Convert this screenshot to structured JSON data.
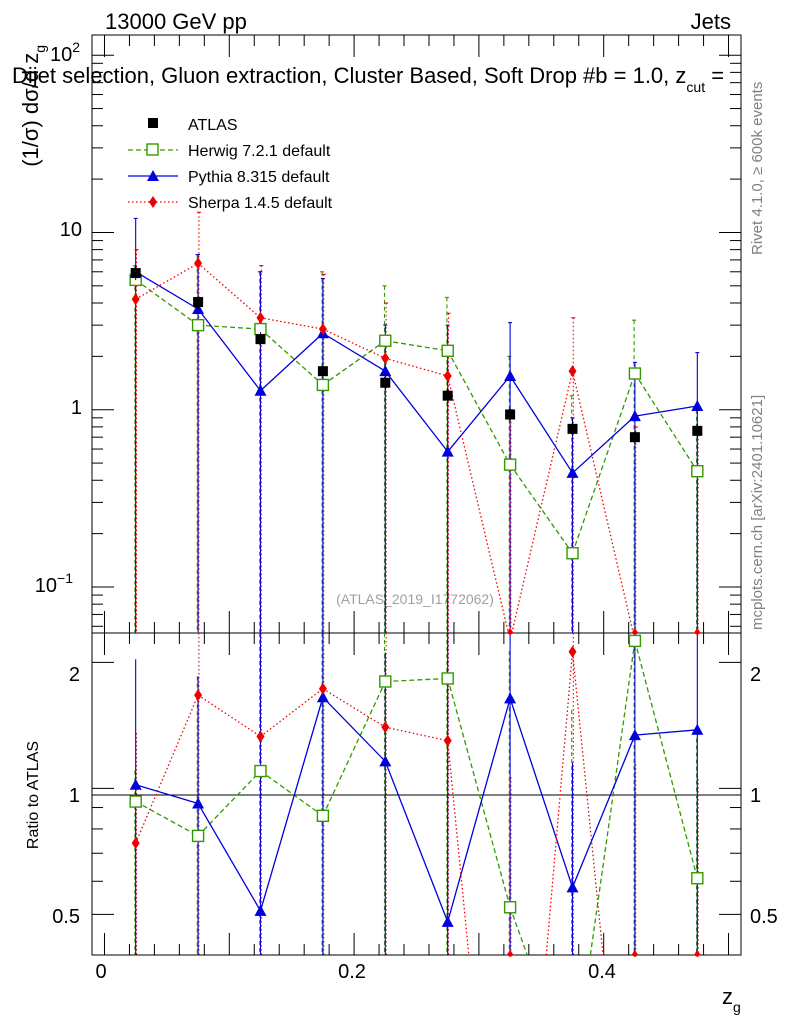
{
  "header": {
    "energy": "13000 GeV pp",
    "process": "Jets",
    "selection": "Dijet selection, Gluon extraction, Cluster Based, Soft Drop #b = 1.0, z",
    "cut_sub": "cut",
    "cut_tail": " =",
    "analysis_id": "(ATLAS_2019_I1772062)",
    "side_rivet": "Rivet 4.1.0, ≥ 600k events",
    "side_mcplots": "mcplots.cern.ch [arXiv:2401.10621]"
  },
  "axes": {
    "main_ylabel_main": "(1/σ) dσ/d z",
    "main_ylabel_sub": "g",
    "ratio_ylabel": "Ratio to ATLAS",
    "xlabel_main": "z",
    "xlabel_sub": "g",
    "main_tick_1e2_base": "10",
    "main_tick_1e2_exp": "2",
    "main_tick_10": "10",
    "main_tick_1": "1",
    "main_tick_1em1_base": "10",
    "main_tick_1em1_exp": "−1",
    "ratio_tick_2": "2",
    "ratio_tick_1": "1",
    "ratio_tick_05": "0.5",
    "x_tick_0": "0",
    "x_tick_02": "0.2",
    "x_tick_04": "0.4"
  },
  "legend": {
    "atlas": "ATLAS",
    "herwig": "Herwig 7.2.1 default",
    "pythia": "Pythia 8.315 default",
    "sherpa": "Sherpa 1.4.5 default"
  },
  "colors": {
    "atlas": "#000000",
    "herwig": "#339900",
    "pythia": "#0000dd",
    "sherpa": "#ee0000"
  },
  "chart_data": {
    "type": "scatter",
    "xlabel": "z_g",
    "ylabel": "(1/σ) dσ/d z_g",
    "yscale": "log",
    "xlim": [
      -0.01,
      0.51
    ],
    "ylim": [
      0.055,
      130
    ],
    "ratio_ylim": [
      0.4,
      2.35
    ],
    "x": [
      0.025,
      0.075,
      0.125,
      0.175,
      0.225,
      0.275,
      0.325,
      0.375,
      0.425,
      0.475
    ],
    "series": [
      {
        "name": "ATLAS",
        "values": [
          5.9,
          4.05,
          2.5,
          1.65,
          1.42,
          1.2,
          0.94,
          0.78,
          0.7,
          0.76
        ]
      },
      {
        "name": "Herwig 7.2.1 default",
        "values": [
          5.4,
          3.0,
          2.85,
          1.38,
          2.45,
          2.15,
          0.49,
          0.155,
          1.6,
          0.45
        ]
      },
      {
        "name": "Pythia 8.315 default",
        "values": [
          6.0,
          3.7,
          1.28,
          2.7,
          1.65,
          0.58,
          1.55,
          0.44,
          0.92,
          1.05
        ]
      },
      {
        "name": "Sherpa 1.4.5 default",
        "values": [
          4.2,
          6.7,
          3.3,
          2.85,
          1.95,
          1.55,
          0.05,
          1.65,
          0.05,
          0.05
        ]
      }
    ],
    "ratio": {
      "Herwig 7.2.1 default": [
        0.93,
        0.77,
        1.1,
        0.86,
        1.8,
        1.83,
        0.52,
        0.2,
        2.25,
        0.61
      ],
      "Pythia 8.315 default": [
        1.02,
        0.92,
        0.51,
        1.65,
        1.16,
        0.48,
        1.64,
        0.58,
        1.34,
        1.38
      ],
      "Sherpa 1.4.5 default": [
        0.74,
        1.67,
        1.33,
        1.73,
        1.4,
        1.3,
        0.04,
        2.12,
        0.07,
        0.07
      ]
    },
    "error_up": {
      "Herwig 7.2.1 default": [
        6.5,
        7.5,
        6.0,
        6.0,
        5.0,
        4.3,
        2.0,
        1.2,
        3.2,
        1.0
      ],
      "Pythia 8.315 default": [
        12,
        7.5,
        6.0,
        5.5,
        3.0,
        3.0,
        3.1,
        0.9,
        1.85,
        2.1
      ],
      "Sherpa 1.4.5 default": [
        8.0,
        13.0,
        6.5,
        5.8,
        4.0,
        3.5,
        1.0,
        3.3,
        0.8,
        0.8
      ]
    }
  }
}
